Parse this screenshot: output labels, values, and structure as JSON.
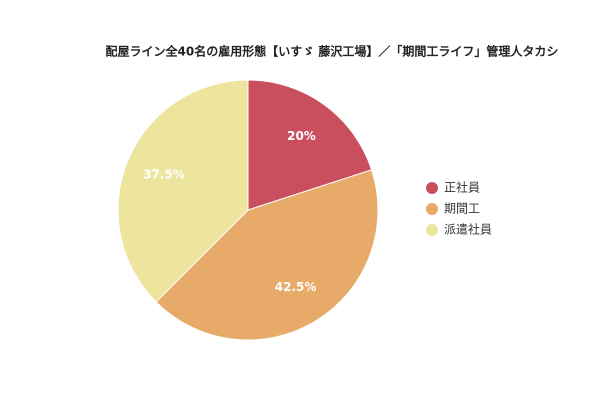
{
  "chart_data": {
    "type": "pie",
    "title": "配屋ライン全40名の雇用形態【いすゞ 藤沢工場】／「期間工ライフ」管理人タカシ",
    "categories": [
      "正社員",
      "期間工",
      "派遣社員"
    ],
    "values": [
      20,
      42.5,
      37.5
    ],
    "value_labels": [
      "20%",
      "42.5%",
      "37.5%"
    ],
    "colors": [
      "#c94f5e",
      "#e8aa68",
      "#ede49e"
    ],
    "legend": "right"
  }
}
